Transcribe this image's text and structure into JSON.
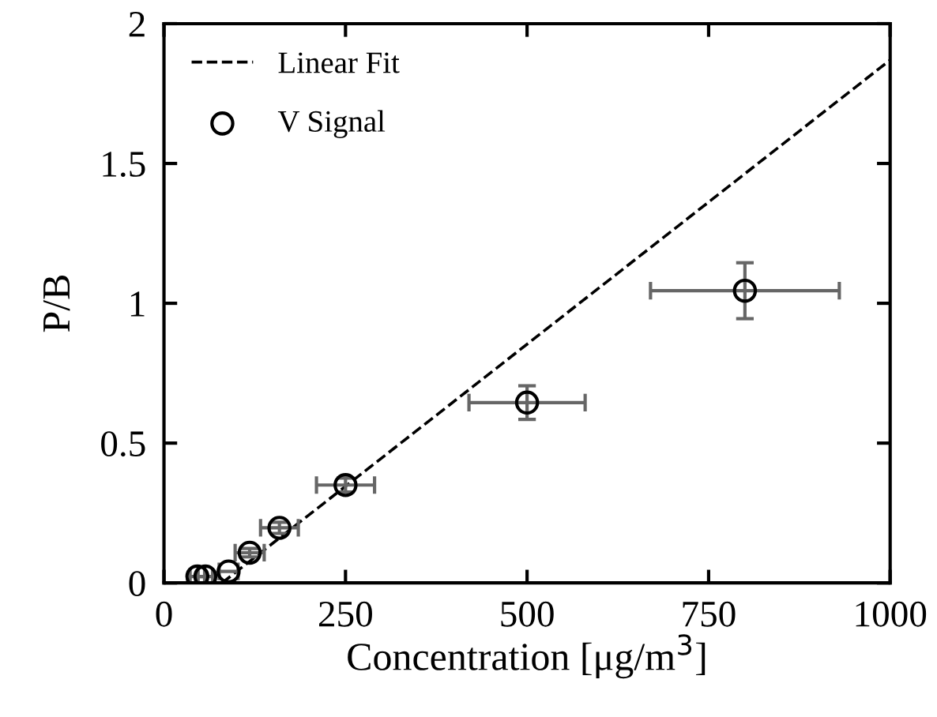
{
  "chart_data": {
    "type": "scatter",
    "xlabel": "Concentration [μg/m$^{3}$]",
    "ylabel": "P/B",
    "xlim": [
      0,
      1000
    ],
    "xticks": [
      0,
      250,
      500,
      750,
      1000
    ],
    "ylim": [
      0,
      2
    ],
    "yticks": [
      0,
      0.5,
      1,
      1.5,
      2
    ],
    "grid": false,
    "legend": "top left",
    "series": [
      {
        "type": "line",
        "name": "Linear Fit",
        "color": "#000000",
        "line_style": "dashed",
        "marker": "none",
        "x": [
          80,
          1000
        ],
        "values": [
          0,
          1.87
        ]
      },
      {
        "name": "V Signal",
        "color": "#000000",
        "marker": "circle",
        "x": [
          46,
          57,
          89,
          118,
          159,
          250,
          500,
          800
        ],
        "values": [
          0.023,
          0.023,
          0.041,
          0.108,
          0.197,
          0.35,
          0.645,
          1.045
        ],
        "errors": [
          null,
          null,
          null,
          0.015,
          0.02,
          0.025,
          0.06,
          0.1
        ],
        "xerrors": [
          10,
          10,
          13,
          20,
          26,
          40,
          80,
          130
        ]
      }
    ]
  }
}
